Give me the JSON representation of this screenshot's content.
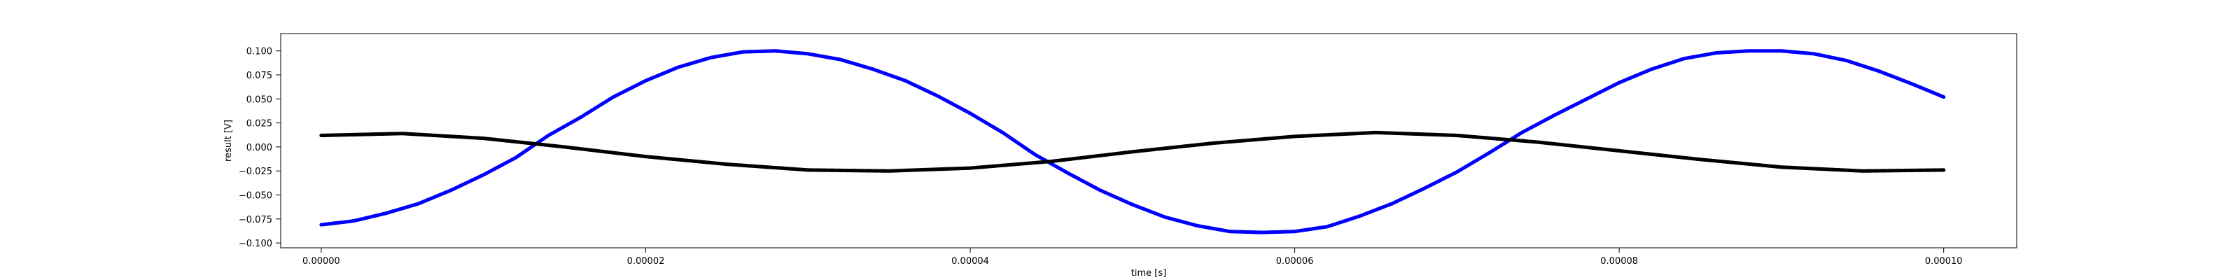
{
  "chart_data": {
    "type": "scatter",
    "title": "",
    "xlabel": "time [s]",
    "ylabel": "result [V]",
    "xlim": [
      -2.5e-06,
      0.0001045
    ],
    "ylim": [
      -0.105,
      0.118
    ],
    "grid": false,
    "legend": "none",
    "x_ticks": [
      {
        "value": 0.0,
        "label": "0.00000"
      },
      {
        "value": 2e-05,
        "label": "0.00002"
      },
      {
        "value": 4e-05,
        "label": "0.00004"
      },
      {
        "value": 6e-05,
        "label": "0.00006"
      },
      {
        "value": 8e-05,
        "label": "0.00008"
      },
      {
        "value": 0.0001,
        "label": "0.00010"
      }
    ],
    "y_ticks": [
      {
        "value": 0.1,
        "label": "0.100"
      },
      {
        "value": 0.075,
        "label": "0.075"
      },
      {
        "value": 0.05,
        "label": "0.050"
      },
      {
        "value": 0.025,
        "label": "0.025"
      },
      {
        "value": 0.0,
        "label": "0.000"
      },
      {
        "value": -0.025,
        "label": "−0.025"
      },
      {
        "value": -0.05,
        "label": "−0.050"
      },
      {
        "value": -0.075,
        "label": "−0.075"
      },
      {
        "value": -0.1,
        "label": "−0.100"
      }
    ],
    "series": [
      {
        "color": "#0000ff",
        "marker": "dot",
        "x": [
          0.0,
          2e-06,
          4e-06,
          6e-06,
          8e-06,
          1e-05,
          1.2e-05,
          1.4e-05,
          1.6e-05,
          1.8e-05,
          2e-05,
          2.2e-05,
          2.4e-05,
          2.6e-05,
          2.8e-05,
          3e-05,
          3.2e-05,
          3.4e-05,
          3.6e-05,
          3.8e-05,
          4e-05,
          4.2e-05,
          4.4e-05,
          4.6e-05,
          4.8e-05,
          5e-05,
          5.2e-05,
          5.4e-05,
          5.6e-05,
          5.8e-05,
          6e-05,
          6.2e-05,
          6.4e-05,
          6.6e-05,
          6.8e-05,
          7e-05,
          7.2e-05,
          7.4e-05,
          7.6e-05,
          7.8e-05,
          8e-05,
          8.2e-05,
          8.4e-05,
          8.6e-05,
          8.8e-05,
          9e-05,
          9.2e-05,
          9.4e-05,
          9.6e-05,
          9.8e-05,
          0.0001
        ],
        "y": [
          -0.081,
          -0.077,
          -0.069,
          -0.059,
          -0.045,
          -0.029,
          -0.011,
          0.012,
          0.031,
          0.052,
          0.069,
          0.083,
          0.093,
          0.099,
          0.1,
          0.097,
          0.091,
          0.081,
          0.069,
          0.053,
          0.035,
          0.015,
          -0.008,
          -0.027,
          -0.045,
          -0.06,
          -0.073,
          -0.082,
          -0.088,
          -0.089,
          -0.088,
          -0.083,
          -0.072,
          -0.059,
          -0.043,
          -0.026,
          -0.006,
          0.015,
          0.033,
          0.05,
          0.067,
          0.081,
          0.092,
          0.098,
          0.1,
          0.1,
          0.097,
          0.09,
          0.079,
          0.066,
          0.052
        ]
      },
      {
        "color": "#000000",
        "marker": "dot",
        "x": [
          0.0,
          5e-06,
          1e-05,
          1.5e-05,
          2e-05,
          2.5e-05,
          3e-05,
          3.5e-05,
          4e-05,
          4.5e-05,
          5e-05,
          5.5e-05,
          6e-05,
          6.5e-05,
          7e-05,
          7.5e-05,
          8e-05,
          8.5e-05,
          9e-05,
          9.5e-05,
          0.0001
        ],
        "y": [
          0.012,
          0.014,
          0.009,
          0.0,
          -0.01,
          -0.018,
          -0.024,
          -0.025,
          -0.022,
          -0.015,
          -0.005,
          0.004,
          0.011,
          0.015,
          0.012,
          0.005,
          -0.004,
          -0.013,
          -0.021,
          -0.025,
          -0.024
        ]
      }
    ]
  }
}
